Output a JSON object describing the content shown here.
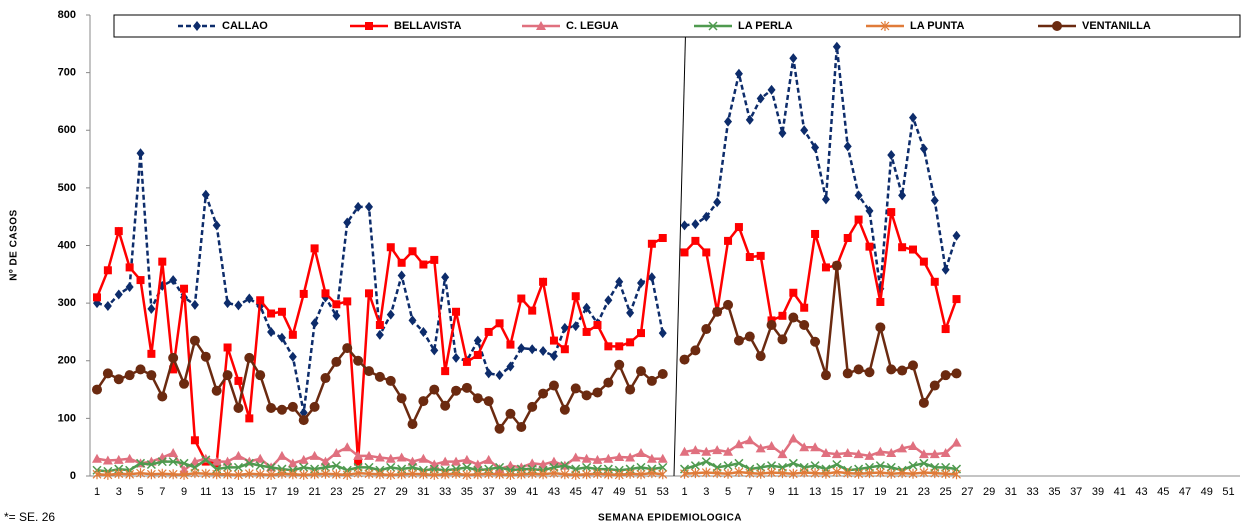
{
  "chart_data": {
    "type": "line",
    "y_label": "Nº DE CASOS",
    "x_label": "SEMANA EPIDEMIOLOGICA",
    "footnote": "*= SE. 26",
    "categories": [
      "1",
      null,
      "3",
      null,
      "5",
      null,
      "7",
      null,
      "9",
      null,
      "11",
      null,
      "13",
      null,
      "15",
      null,
      "17",
      null,
      "19",
      null,
      "21",
      null,
      "23",
      null,
      "25",
      null,
      "27",
      null,
      "29",
      null,
      "31",
      null,
      "33",
      null,
      "35",
      null,
      "37",
      null,
      "39",
      null,
      "41",
      null,
      "43",
      null,
      "45",
      null,
      "47",
      null,
      "49",
      null,
      "51",
      null,
      "53",
      null,
      "1",
      null,
      "3",
      null,
      "5",
      null,
      "7",
      null,
      "9",
      null,
      "11",
      null,
      "13",
      null,
      "15",
      null,
      "17",
      null,
      "19",
      null,
      "21",
      null,
      "23",
      null,
      "25",
      null,
      "27",
      null,
      "29",
      null,
      "31",
      null,
      "33",
      null,
      "35",
      null,
      "37",
      null,
      "39",
      null,
      "41",
      null,
      "43",
      null,
      "45",
      null,
      "47",
      null,
      "49",
      null,
      "51",
      null
    ],
    "ylim": [
      0,
      800
    ],
    "yticks": [
      0,
      100,
      200,
      300,
      400,
      500,
      600,
      700,
      800
    ],
    "grid": false,
    "legend": "top",
    "series": [
      {
        "name": "CALLAO",
        "color": "#0d2c6b",
        "marker": "diamond",
        "dashed": true,
        "values": [
          300,
          295,
          315,
          328,
          560,
          290,
          330,
          340,
          310,
          297,
          488,
          435,
          300,
          296,
          308,
          295,
          250,
          240,
          207,
          110,
          265,
          310,
          278,
          440,
          467,
          467,
          245,
          280,
          348,
          270,
          250,
          218,
          345,
          205,
          200,
          235,
          178,
          175,
          190,
          222,
          220,
          217,
          208,
          257,
          260,
          292,
          265,
          305,
          337,
          283,
          335,
          345,
          248,
          null,
          435,
          437,
          450,
          475,
          615,
          698,
          618,
          655,
          670,
          595,
          725,
          600,
          570,
          480,
          745,
          572,
          487,
          460,
          325,
          557,
          487,
          622,
          568,
          478,
          358,
          417,
          null,
          null,
          null,
          null,
          null,
          null,
          null,
          null,
          null,
          null,
          null,
          null,
          null,
          null,
          null,
          null,
          null,
          null,
          null,
          null,
          null,
          null,
          null,
          null,
          null,
          null
        ]
      },
      {
        "name": "BELLAVISTA",
        "color": "#ff0000",
        "marker": "square",
        "dashed": false,
        "values": [
          310,
          357,
          425,
          362,
          340,
          212,
          372,
          185,
          325,
          62,
          25,
          22,
          223,
          165,
          100,
          305,
          282,
          285,
          245,
          316,
          395,
          317,
          298,
          303,
          25,
          317,
          262,
          397,
          370,
          390,
          367,
          375,
          182,
          285,
          198,
          210,
          250,
          265,
          228,
          308,
          287,
          337,
          235,
          220,
          312,
          250,
          262,
          225,
          225,
          232,
          248,
          403,
          413,
          null,
          388,
          408,
          388,
          285,
          408,
          432,
          380,
          382,
          270,
          278,
          318,
          292,
          420,
          362,
          365,
          413,
          445,
          398,
          302,
          458,
          397,
          393,
          372,
          337,
          255,
          307,
          null,
          null,
          null,
          null,
          null,
          null,
          null,
          null,
          null,
          null,
          null,
          null,
          null,
          null,
          null,
          null,
          null,
          null,
          null,
          null,
          null,
          null,
          null,
          null,
          null,
          null
        ]
      },
      {
        "name": "C. LEGUA",
        "color": "#e0707f",
        "marker": "triangle",
        "dashed": false,
        "values": [
          30,
          27,
          28,
          30,
          22,
          25,
          32,
          40,
          10,
          25,
          30,
          25,
          25,
          35,
          25,
          30,
          15,
          35,
          22,
          28,
          35,
          25,
          40,
          50,
          35,
          35,
          32,
          30,
          32,
          25,
          30,
          20,
          25,
          25,
          28,
          20,
          28,
          12,
          18,
          15,
          22,
          20,
          25,
          18,
          32,
          30,
          28,
          30,
          33,
          32,
          40,
          30,
          30,
          null,
          42,
          45,
          42,
          45,
          42,
          55,
          62,
          48,
          52,
          38,
          65,
          50,
          50,
          40,
          38,
          40,
          38,
          35,
          42,
          40,
          48,
          52,
          38,
          38,
          40,
          58,
          null,
          null,
          null,
          null,
          null,
          null,
          null,
          null,
          null,
          null,
          null,
          null,
          null,
          null,
          null,
          null,
          null,
          null,
          null,
          null,
          null,
          null,
          null,
          null,
          null,
          null
        ]
      },
      {
        "name": "LA PERLA",
        "color": "#4f9a4f",
        "marker": "x",
        "dashed": false,
        "values": [
          10,
          8,
          12,
          10,
          22,
          20,
          25,
          25,
          22,
          15,
          28,
          12,
          15,
          15,
          22,
          18,
          15,
          12,
          10,
          15,
          12,
          15,
          18,
          10,
          15,
          15,
          10,
          15,
          12,
          15,
          10,
          12,
          10,
          12,
          15,
          10,
          12,
          15,
          10,
          12,
          12,
          10,
          15,
          18,
          12,
          15,
          12,
          12,
          10,
          12,
          15,
          12,
          15,
          null,
          12,
          18,
          25,
          15,
          18,
          22,
          12,
          15,
          18,
          15,
          22,
          15,
          18,
          12,
          20,
          10,
          12,
          15,
          18,
          15,
          10,
          18,
          22,
          15,
          15,
          12,
          null,
          null,
          null,
          null,
          null,
          null,
          null,
          null,
          null,
          null,
          null,
          null,
          null,
          null,
          null,
          null,
          null,
          null,
          null,
          null,
          null,
          null,
          null,
          null,
          null,
          null
        ]
      },
      {
        "name": "LA PUNTA",
        "color": "#e07b39",
        "marker": "asterisk",
        "dashed": false,
        "values": [
          3,
          2,
          4,
          3,
          5,
          3,
          4,
          3,
          2,
          5,
          4,
          3,
          3,
          2,
          4,
          3,
          2,
          4,
          3,
          2,
          3,
          4,
          3,
          2,
          5,
          4,
          3,
          2,
          3,
          4,
          3,
          2,
          3,
          4,
          2,
          3,
          4,
          3,
          2,
          3,
          4,
          3,
          5,
          3,
          2,
          3,
          4,
          3,
          2,
          4,
          3,
          5,
          3,
          null,
          4,
          5,
          6,
          5,
          4,
          7,
          5,
          4,
          6,
          5,
          4,
          6,
          5,
          4,
          7,
          5,
          4,
          5,
          6,
          4,
          5,
          4,
          6,
          5,
          4,
          3,
          null,
          null,
          null,
          null,
          null,
          null,
          null,
          null,
          null,
          null,
          null,
          null,
          null,
          null,
          null,
          null,
          null,
          null,
          null,
          null,
          null,
          null,
          null,
          null,
          null,
          null
        ]
      },
      {
        "name": "VENTANILLA",
        "color": "#6b2a10",
        "marker": "circle",
        "dashed": false,
        "values": [
          150,
          178,
          168,
          175,
          185,
          175,
          138,
          205,
          160,
          235,
          207,
          148,
          175,
          118,
          205,
          175,
          118,
          115,
          120,
          97,
          120,
          170,
          198,
          222,
          200,
          182,
          172,
          165,
          135,
          90,
          130,
          150,
          122,
          148,
          153,
          135,
          130,
          82,
          108,
          85,
          120,
          143,
          157,
          115,
          152,
          140,
          145,
          162,
          193,
          150,
          182,
          165,
          177,
          null,
          202,
          218,
          255,
          285,
          297,
          235,
          242,
          208,
          262,
          237,
          275,
          262,
          233,
          175,
          365,
          178,
          185,
          180,
          258,
          185,
          183,
          192,
          127,
          157,
          175,
          178,
          null,
          null,
          null,
          null,
          null,
          null,
          null,
          null,
          null,
          null,
          null,
          null,
          null,
          null,
          null,
          null,
          null,
          null,
          null,
          null,
          null,
          null,
          null,
          null,
          null,
          null
        ]
      }
    ]
  }
}
